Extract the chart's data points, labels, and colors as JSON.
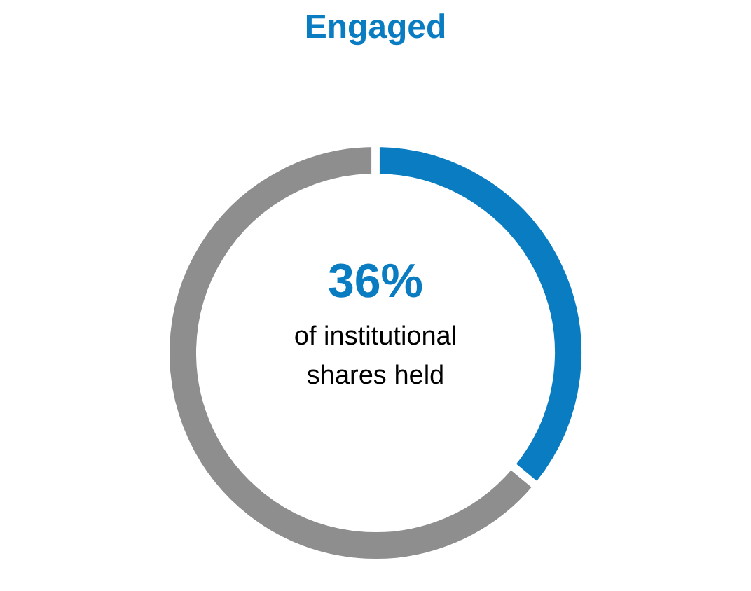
{
  "chart_data": {
    "type": "donut",
    "title": "Engaged",
    "categories": [
      null,
      null
    ],
    "values": [
      36,
      64
    ],
    "colors": [
      "#0a7dc2",
      "#8e8e8e"
    ],
    "annotations": [
      "36%",
      "of institutional",
      "shares held"
    ],
    "legend": false
  }
}
